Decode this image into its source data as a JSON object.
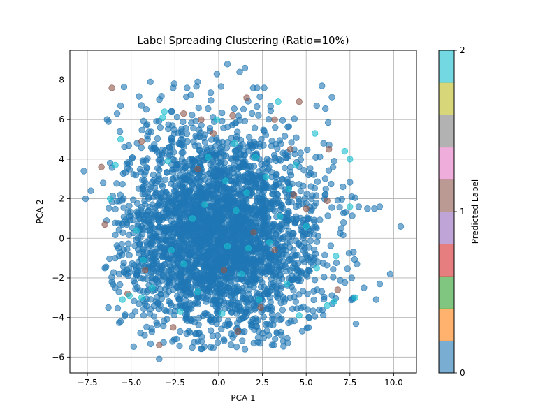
{
  "chart_data": {
    "type": "scatter",
    "title": "Label Spreading Clustering (Ratio=10%)",
    "xlabel": "PCA 1",
    "ylabel": "PCA 2",
    "xlim": [
      -8.5,
      11.3
    ],
    "ylim": [
      -6.8,
      9.5
    ],
    "x_ticks": [
      -7.5,
      -5.0,
      -2.5,
      0.0,
      2.5,
      5.0,
      7.5,
      10.0
    ],
    "x_tick_labels": [
      "−7.5",
      "−5.0",
      "−2.5",
      "0.0",
      "2.5",
      "5.0",
      "7.5",
      "10.0"
    ],
    "y_ticks": [
      -6,
      -4,
      -2,
      0,
      2,
      4,
      6,
      8
    ],
    "y_tick_labels": [
      "−6",
      "−4",
      "−2",
      "0",
      "2",
      "4",
      "6",
      "8"
    ],
    "grid": true,
    "point_alpha": 0.6,
    "colorbar": {
      "label": "Predicted Label",
      "ticks": [
        0,
        1,
        2
      ],
      "tick_labels": [
        "0",
        "1",
        "2"
      ],
      "colors": [
        "#1f77b4",
        "#ff7f0e",
        "#2ca02c",
        "#d62728",
        "#9467bd",
        "#8c564b",
        "#e377c2",
        "#7f7f7f",
        "#bcbd22",
        "#17becf"
      ]
    },
    "class_colors": {
      "0": "#1f77b4",
      "1": "#8c564b",
      "2": "#17becf"
    },
    "series": [
      {
        "label": 0,
        "cluster": {
          "n": 3200,
          "mean": [
            0.0,
            0.2
          ],
          "sd": [
            2.8,
            2.6
          ],
          "clip_x": [
            -6.5,
            8.0
          ],
          "clip_y": [
            -5.6,
            8.0
          ]
        },
        "points": [
          [
            -7.7,
            3.4
          ],
          [
            -7.6,
            2.0
          ],
          [
            -7.3,
            2.4
          ],
          [
            -6.6,
            2.8
          ],
          [
            -6.4,
            0.9
          ],
          [
            -6.2,
            3.8
          ],
          [
            -6.3,
            5.9
          ],
          [
            -5.8,
            6.3
          ],
          [
            -5.6,
            6.7
          ],
          [
            -3.9,
            7.9
          ],
          [
            -2.6,
            7.6
          ],
          [
            -1.8,
            7.6
          ],
          [
            -1.2,
            7.9
          ],
          [
            -0.1,
            8.3
          ],
          [
            0.5,
            8.8
          ],
          [
            1.2,
            8.4
          ],
          [
            1.5,
            8.6
          ],
          [
            2.2,
            7.6
          ],
          [
            2.6,
            7.6
          ],
          [
            5.9,
            7.7
          ],
          [
            5.6,
            6.7
          ],
          [
            6.0,
            4.8
          ],
          [
            6.6,
            3.9
          ],
          [
            7.1,
            2.6
          ],
          [
            7.6,
            2.1
          ],
          [
            8.0,
            1.6
          ],
          [
            8.5,
            1.5
          ],
          [
            8.9,
            1.5
          ],
          [
            9.2,
            1.6
          ],
          [
            10.4,
            0.6
          ],
          [
            7.7,
            -0.7
          ],
          [
            7.9,
            -1.3
          ],
          [
            7.6,
            -2.0
          ],
          [
            8.3,
            -2.5
          ],
          [
            9.2,
            -2.3
          ],
          [
            9.8,
            -1.8
          ],
          [
            9.0,
            -3.1
          ],
          [
            7.7,
            -3.0
          ],
          [
            6.5,
            -3.3
          ],
          [
            3.7,
            -5.2
          ],
          [
            1.5,
            -5.6
          ],
          [
            -1.3,
            -4.8
          ],
          [
            -3.4,
            -6.1
          ],
          [
            -5.6,
            -4.2
          ],
          [
            -6.3,
            -3.5
          ],
          [
            -6.1,
            -2.2
          ],
          [
            -6.5,
            -1.5
          ]
        ]
      },
      {
        "label": 1,
        "points": [
          [
            -6.1,
            7.6
          ],
          [
            -6.7,
            3.6
          ],
          [
            -6.5,
            0.7
          ],
          [
            -3.4,
            -5.4
          ],
          [
            -4.2,
            -1.6
          ],
          [
            -2.0,
            6.3
          ],
          [
            -1.0,
            6.0
          ],
          [
            0.8,
            6.2
          ],
          [
            1.6,
            7.1
          ],
          [
            3.2,
            6.0
          ],
          [
            4.6,
            6.9
          ],
          [
            4.3,
            2.2
          ],
          [
            5.0,
            1.5
          ],
          [
            6.3,
            4.5
          ],
          [
            6.8,
            -2.6
          ],
          [
            0.3,
            -1.6
          ],
          [
            2.0,
            0.3
          ],
          [
            -1.2,
            3.5
          ],
          [
            3.2,
            -0.6
          ],
          [
            -2.6,
            -4.5
          ],
          [
            -4.4,
            4.9
          ],
          [
            2.4,
            -3.5
          ],
          [
            -0.3,
            5.3
          ],
          [
            4.1,
            4.5
          ],
          [
            -5.2,
            -2.8
          ],
          [
            1.1,
            -4.7
          ],
          [
            6.2,
            1.9
          ]
        ]
      },
      {
        "label": 2,
        "points": [
          [
            -5.6,
            5.0
          ],
          [
            -5.9,
            3.7
          ],
          [
            -6.2,
            2.0
          ],
          [
            -5.1,
            -2.9
          ],
          [
            -5.5,
            -3.1
          ],
          [
            -4.3,
            -1.1
          ],
          [
            -4.4,
            -3.0
          ],
          [
            -3.1,
            6.4
          ],
          [
            -3.2,
            6.1
          ],
          [
            -2.9,
            3.9
          ],
          [
            -2.7,
            -0.6
          ],
          [
            -2.2,
            -3.7
          ],
          [
            -1.5,
            1.0
          ],
          [
            -1.2,
            -2.7
          ],
          [
            -0.6,
            4.1
          ],
          [
            -0.1,
            6.0
          ],
          [
            0.4,
            2.9
          ],
          [
            0.5,
            -0.4
          ],
          [
            0.9,
            4.8
          ],
          [
            1.3,
            -1.8
          ],
          [
            1.6,
            2.3
          ],
          [
            1.7,
            -0.5
          ],
          [
            2.1,
            4.1
          ],
          [
            2.3,
            -3.1
          ],
          [
            2.7,
            3.1
          ],
          [
            3.4,
            6.9
          ],
          [
            3.5,
            1.1
          ],
          [
            3.9,
            -2.3
          ],
          [
            4.4,
            3.7
          ],
          [
            4.6,
            -3.9
          ],
          [
            5.0,
            0.6
          ],
          [
            5.5,
            5.3
          ],
          [
            5.6,
            -1.5
          ],
          [
            6.2,
            -3.4
          ],
          [
            6.6,
            -3.2
          ],
          [
            7.2,
            4.4
          ],
          [
            7.5,
            4.0
          ],
          [
            7.8,
            -3.0
          ],
          [
            7.5,
            1.6
          ],
          [
            6.7,
            -0.9
          ],
          [
            -4.7,
            0.4
          ],
          [
            -3.8,
            -2.5
          ],
          [
            -2.0,
            -1.3
          ],
          [
            -0.8,
            1.7
          ],
          [
            0.2,
            -3.8
          ],
          [
            1.0,
            1.4
          ],
          [
            2.9,
            -0.2
          ],
          [
            4.0,
            2.5
          ]
        ]
      }
    ]
  }
}
